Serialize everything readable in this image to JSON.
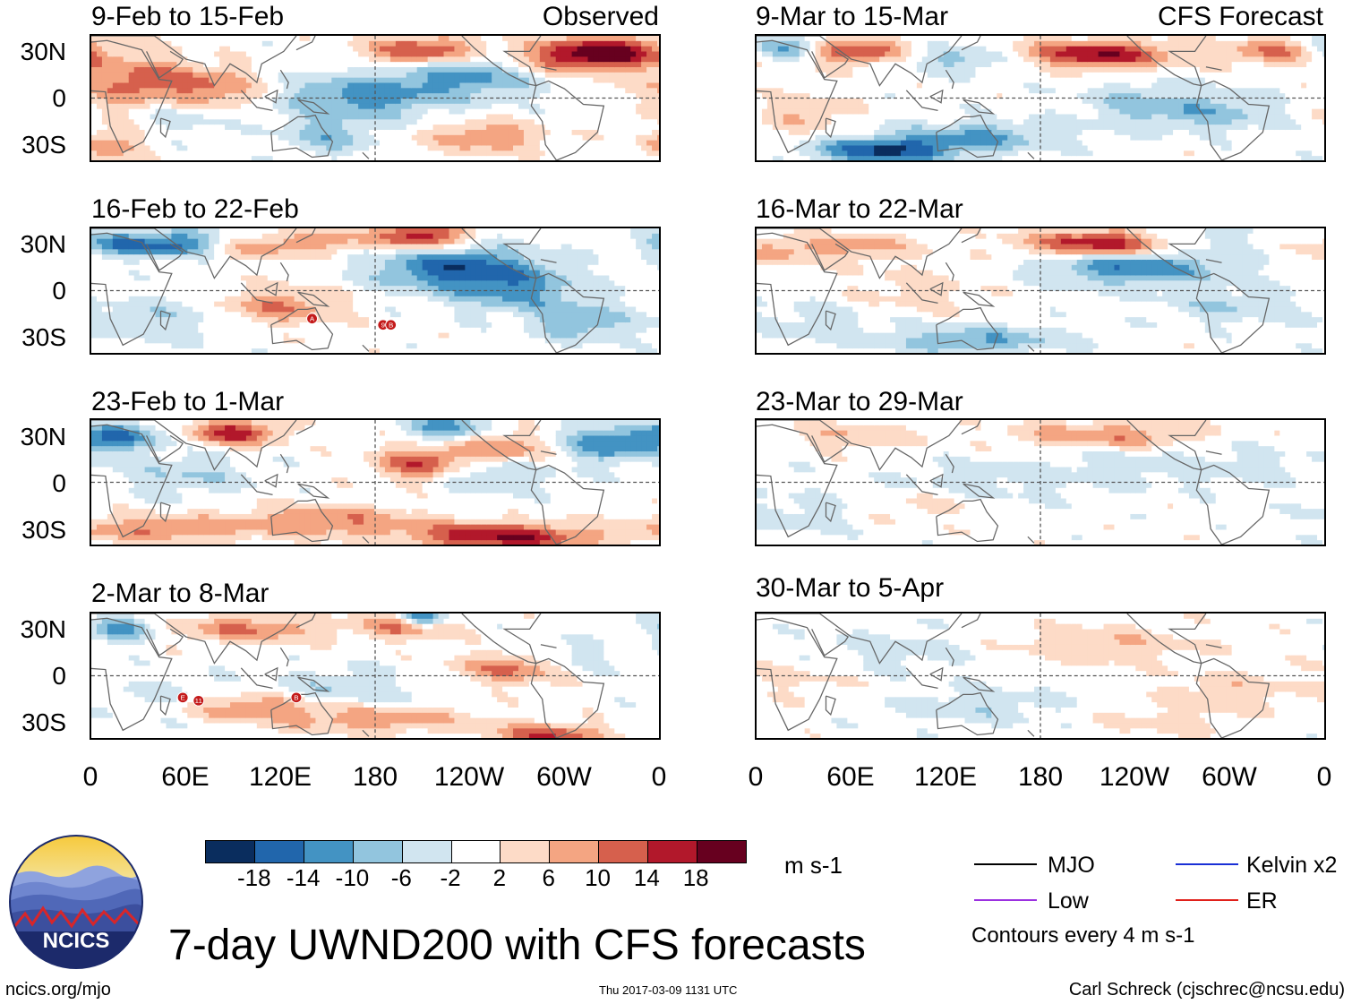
{
  "panels_left": [
    {
      "title": "9-Feb to 15-Feb",
      "right_title": "Observed"
    },
    {
      "title": "16-Feb to 22-Feb",
      "right_title": ""
    },
    {
      "title": "23-Feb to 1-Mar",
      "right_title": ""
    },
    {
      "title": "2-Mar to 8-Mar",
      "right_title": ""
    }
  ],
  "panels_right": [
    {
      "title": "9-Mar to 15-Mar",
      "right_title": "CFS Forecast"
    },
    {
      "title": "16-Mar to 22-Mar",
      "right_title": ""
    },
    {
      "title": "23-Mar to 29-Mar",
      "right_title": ""
    },
    {
      "title": "30-Mar to 5-Apr",
      "right_title": ""
    }
  ],
  "lat_labels": [
    "30N",
    "0",
    "30S"
  ],
  "lon_labels": [
    "0",
    "60E",
    "120E",
    "180",
    "120W",
    "60W",
    "0"
  ],
  "colorbar": {
    "colors": [
      "#0a2d5e",
      "#2166ac",
      "#4393c3",
      "#92c5de",
      "#d1e5f0",
      "#ffffff",
      "#fddbc7",
      "#f4a582",
      "#d6604d",
      "#b2182b",
      "#67001f"
    ],
    "labels": [
      "-18",
      "-14",
      "-10",
      "-6",
      "-2",
      "2",
      "6",
      "10",
      "14",
      "18"
    ],
    "units": "m s-1"
  },
  "legend": {
    "items": [
      {
        "label": "MJO",
        "color": "#000000"
      },
      {
        "label": "Kelvin x2",
        "color": "#1a2fd6"
      },
      {
        "label": "Low",
        "color": "#9b30e0"
      },
      {
        "label": "ER",
        "color": "#e0201a"
      }
    ],
    "note": "Contours every 4 m s-1"
  },
  "logo_text": "NCICS",
  "main_title": "7-day UWND200 with CFS forecasts",
  "footer": {
    "url": "ncics.org/mjo",
    "timestamp": "Thu 2017-03-09 1131 UTC",
    "credit": "Carl Schreck (cjschrec@ncsu.edu)"
  },
  "storm_markers": [
    {
      "panel": "16-Feb to 22-Feb",
      "labels": [
        "A",
        "9",
        "B"
      ]
    },
    {
      "panel": "2-Mar to 8-Mar",
      "labels": [
        "E",
        "11",
        "B"
      ]
    }
  ],
  "chart_data": {
    "type": "heatmap",
    "title": "7-day UWND200 with CFS forecasts",
    "variable": "200-hPa zonal wind anomaly",
    "units": "m s-1",
    "x_axis": {
      "labels": [
        "0",
        "60E",
        "120E",
        "180",
        "120W",
        "60W",
        "0"
      ],
      "range_deg": [
        0,
        360
      ]
    },
    "y_axis": {
      "labels": [
        "30N",
        "0",
        "30S"
      ],
      "range_deg": [
        -40,
        40
      ]
    },
    "contour_levels": [
      -18,
      -14,
      -10,
      -6,
      -2,
      2,
      6,
      10,
      14,
      18
    ],
    "panels": [
      {
        "period": "9-Feb to 15-Feb",
        "source": "Observed"
      },
      {
        "period": "16-Feb to 22-Feb",
        "source": "Observed"
      },
      {
        "period": "23-Feb to 1-Mar",
        "source": "Observed"
      },
      {
        "period": "2-Mar to 8-Mar",
        "source": "Observed"
      },
      {
        "period": "9-Mar to 15-Mar",
        "source": "CFS Forecast"
      },
      {
        "period": "16-Mar to 22-Mar",
        "source": "CFS Forecast"
      },
      {
        "period": "23-Mar to 29-Mar",
        "source": "CFS Forecast"
      },
      {
        "period": "30-Mar to 5-Apr",
        "source": "CFS Forecast"
      }
    ]
  }
}
